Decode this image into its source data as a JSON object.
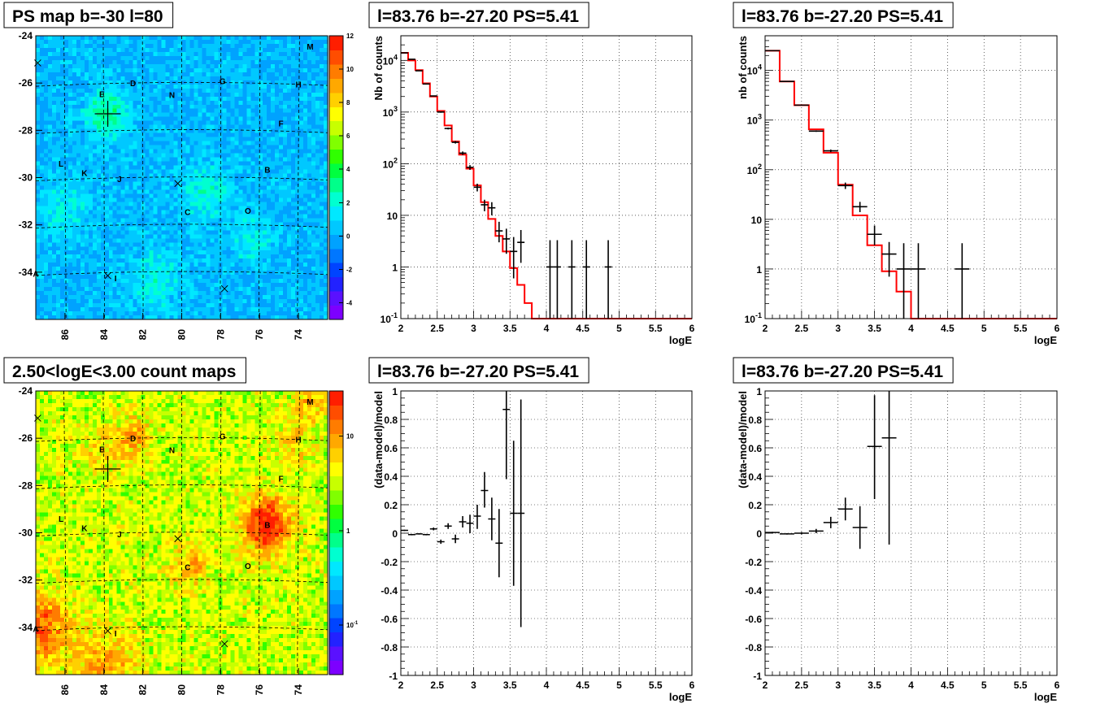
{
  "chart_data": [
    {
      "id": "psmap",
      "type": "heatmap",
      "title": "PS map b=-30 l=80",
      "xlabel": "",
      "ylabel": "",
      "x_ticks": [
        "86",
        "84",
        "82",
        "80",
        "78",
        "76",
        "74"
      ],
      "y_ticks": [
        "-24",
        "-26",
        "-28",
        "-30",
        "-32",
        "-34"
      ],
      "xlim": [
        87.5,
        72.5
      ],
      "ylim": [
        -36,
        -24
      ],
      "z_ticks": [
        "12",
        "10",
        "8",
        "6",
        "4",
        "2",
        "0",
        "-2",
        "-4"
      ],
      "zlim": [
        -5,
        12
      ],
      "cell_mean": 0.3,
      "labels": [
        {
          "text": "M",
          "x": 73.4,
          "y": -24.45
        },
        {
          "text": "E",
          "x": 84.1,
          "y": -26.45
        },
        {
          "text": "D",
          "x": 82.5,
          "y": -26.0
        },
        {
          "text": "G",
          "x": 77.9,
          "y": -25.9
        },
        {
          "text": "H",
          "x": 74.0,
          "y": -26.05
        },
        {
          "text": "N",
          "x": 80.5,
          "y": -26.5
        },
        {
          "text": "F",
          "x": 74.9,
          "y": -27.7
        },
        {
          "text": "L",
          "x": 86.2,
          "y": -29.4
        },
        {
          "text": "K",
          "x": 85.0,
          "y": -29.8
        },
        {
          "text": "J",
          "x": 83.2,
          "y": -30.05
        },
        {
          "text": "B",
          "x": 75.6,
          "y": -29.65
        },
        {
          "text": "C",
          "x": 79.7,
          "y": -31.45
        },
        {
          "text": "O",
          "x": 76.6,
          "y": -31.4
        },
        {
          "text": "A",
          "x": 87.5,
          "y": -34.05
        },
        {
          "text": "I",
          "x": 83.4,
          "y": -34.25
        }
      ],
      "crosses": [
        {
          "x": 87.4,
          "y": -25.15
        },
        {
          "x": 80.2,
          "y": -30.25
        },
        {
          "x": 83.8,
          "y": -34.15
        },
        {
          "x": 77.8,
          "y": -34.7
        }
      ],
      "big_cross": {
        "x": 83.8,
        "y": -27.3
      }
    },
    {
      "id": "spec1",
      "type": "line",
      "title": "l=83.76 b=-27.20 PS=5.41",
      "xlabel": "logE",
      "ylabel": "Nb of counts",
      "log_y": true,
      "xlim": [
        2,
        6
      ],
      "ylim": [
        0.1,
        30000
      ],
      "x_ticks": [
        "2",
        "2.5",
        "3",
        "3.5",
        "4",
        "4.5",
        "5",
        "5.5",
        "6"
      ],
      "y_ticks": [
        "10^-1",
        "1",
        "10",
        "10^2",
        "10^3",
        "10^4"
      ],
      "bin_width": 0.1,
      "model_bins": [
        14000,
        10000,
        6500,
        3600,
        2000,
        1050,
        550,
        270,
        150,
        80,
        38,
        18,
        8.5,
        4,
        2,
        0.95,
        0.45,
        0.2,
        0.1,
        0.1,
        0.1,
        0.1,
        0.1,
        0.1,
        0.1,
        0.1,
        0.1,
        0.1,
        0.1,
        0.1,
        0.1,
        0.1,
        0.1,
        0.1,
        0.1,
        0.1,
        0.1,
        0.1,
        0.1,
        0.1
      ],
      "data_points": [
        {
          "x": 2.05,
          "y": 14000,
          "lo": 13700,
          "hi": 14300
        },
        {
          "x": 2.15,
          "y": 10500,
          "lo": 10300,
          "hi": 10700
        },
        {
          "x": 2.25,
          "y": 6300,
          "lo": 6150,
          "hi": 6450
        },
        {
          "x": 2.35,
          "y": 3500,
          "lo": 3440,
          "hi": 3560
        },
        {
          "x": 2.45,
          "y": 2050,
          "lo": 2000,
          "hi": 2100
        },
        {
          "x": 2.55,
          "y": 1000,
          "lo": 970,
          "hi": 1030
        },
        {
          "x": 2.65,
          "y": 480,
          "lo": 460,
          "hi": 500
        },
        {
          "x": 2.75,
          "y": 260,
          "lo": 245,
          "hi": 275
        },
        {
          "x": 2.85,
          "y": 160,
          "lo": 148,
          "hi": 172
        },
        {
          "x": 2.95,
          "y": 85,
          "lo": 76,
          "hi": 94
        },
        {
          "x": 3.05,
          "y": 35,
          "lo": 29,
          "hi": 41
        },
        {
          "x": 3.15,
          "y": 16,
          "lo": 12,
          "hi": 20
        },
        {
          "x": 3.25,
          "y": 14,
          "lo": 10,
          "hi": 18
        },
        {
          "x": 3.35,
          "y": 5,
          "lo": 3,
          "hi": 7.5
        },
        {
          "x": 3.45,
          "y": 3.5,
          "lo": 1.8,
          "hi": 5.5
        },
        {
          "x": 3.55,
          "y": 2,
          "lo": 0.6,
          "hi": 3.8
        },
        {
          "x": 3.65,
          "y": 3,
          "lo": 1.2,
          "hi": 5.2
        },
        {
          "x": 4.05,
          "y": 1,
          "lo": 0.1,
          "hi": 3.3
        },
        {
          "x": 4.15,
          "y": 1,
          "lo": 0.1,
          "hi": 3.3
        },
        {
          "x": 4.35,
          "y": 1,
          "lo": 0.1,
          "hi": 3.3
        },
        {
          "x": 4.55,
          "y": 1,
          "lo": 0.1,
          "hi": 3.3
        },
        {
          "x": 4.85,
          "y": 1,
          "lo": 0.1,
          "hi": 3.3
        }
      ]
    },
    {
      "id": "spec2",
      "type": "line",
      "title": "l=83.76 b=-27.20 PS=5.41",
      "xlabel": "logE",
      "ylabel": "nb of counts",
      "log_y": true,
      "xlim": [
        2,
        6
      ],
      "ylim": [
        0.1,
        50000
      ],
      "x_ticks": [
        "2",
        "2.5",
        "3",
        "3.5",
        "4",
        "4.5",
        "5",
        "5.5",
        "6"
      ],
      "y_ticks": [
        "10^-1",
        "1",
        "10",
        "10^2",
        "10^3",
        "10^4"
      ],
      "bin_width": 0.2,
      "model_bins": [
        25000,
        6000,
        2000,
        650,
        220,
        50,
        12,
        3,
        0.9,
        0.35,
        0.1,
        0.1,
        0.1,
        0.1,
        0.1,
        0.1,
        0.1,
        0.1,
        0.1,
        0.1
      ],
      "data_points": [
        {
          "x": 2.1,
          "y": 25000,
          "lo": 24700,
          "hi": 25300
        },
        {
          "x": 2.3,
          "y": 6000,
          "lo": 5920,
          "hi": 6080
        },
        {
          "x": 2.5,
          "y": 2000,
          "lo": 1960,
          "hi": 2040
        },
        {
          "x": 2.7,
          "y": 600,
          "lo": 580,
          "hi": 620
        },
        {
          "x": 2.9,
          "y": 240,
          "lo": 225,
          "hi": 255
        },
        {
          "x": 3.1,
          "y": 48,
          "lo": 41,
          "hi": 55
        },
        {
          "x": 3.3,
          "y": 18,
          "lo": 14,
          "hi": 22.5
        },
        {
          "x": 3.5,
          "y": 5,
          "lo": 3,
          "hi": 7.5
        },
        {
          "x": 3.7,
          "y": 2,
          "lo": 0.7,
          "hi": 3.5
        },
        {
          "x": 3.9,
          "y": 1,
          "lo": 0.1,
          "hi": 3.3
        },
        {
          "x": 4.1,
          "y": 1,
          "lo": 0.1,
          "hi": 3.3
        },
        {
          "x": 4.7,
          "y": 1,
          "lo": 0.1,
          "hi": 3.3
        }
      ]
    },
    {
      "id": "countmap",
      "type": "heatmap",
      "title": "2.50<logE<3.00 count maps",
      "xlabel": "",
      "ylabel": "",
      "x_ticks": [
        "86",
        "84",
        "82",
        "80",
        "78",
        "76",
        "74"
      ],
      "y_ticks": [
        "-24",
        "-26",
        "-28",
        "-30",
        "-32",
        "-34"
      ],
      "xlim": [
        87.5,
        72.5
      ],
      "ylim": [
        -36,
        -24
      ],
      "z_ticks": [
        "10",
        "1",
        "10^-1"
      ],
      "zlim": [
        0.03,
        30
      ],
      "cell_mean": 3.5,
      "labels": [
        {
          "text": "M",
          "x": 73.4,
          "y": -24.45
        },
        {
          "text": "E",
          "x": 84.1,
          "y": -26.45
        },
        {
          "text": "D",
          "x": 82.5,
          "y": -26.0
        },
        {
          "text": "G",
          "x": 77.9,
          "y": -25.9
        },
        {
          "text": "H",
          "x": 74.0,
          "y": -26.05
        },
        {
          "text": "N",
          "x": 80.5,
          "y": -26.5
        },
        {
          "text": "F",
          "x": 74.9,
          "y": -27.7
        },
        {
          "text": "L",
          "x": 86.2,
          "y": -29.4
        },
        {
          "text": "K",
          "x": 85.0,
          "y": -29.8
        },
        {
          "text": "J",
          "x": 83.2,
          "y": -30.05
        },
        {
          "text": "B",
          "x": 75.6,
          "y": -29.65
        },
        {
          "text": "C",
          "x": 79.7,
          "y": -31.45
        },
        {
          "text": "O",
          "x": 76.6,
          "y": -31.4
        },
        {
          "text": "A",
          "x": 87.5,
          "y": -34.05
        },
        {
          "text": "I",
          "x": 83.4,
          "y": -34.25
        }
      ],
      "crosses": [
        {
          "x": 87.4,
          "y": -25.15
        },
        {
          "x": 80.2,
          "y": -30.25
        },
        {
          "x": 83.8,
          "y": -34.15
        },
        {
          "x": 77.8,
          "y": -34.7
        }
      ],
      "big_cross": {
        "x": 83.8,
        "y": -27.3
      }
    },
    {
      "id": "res1",
      "type": "scatter",
      "title": "l=83.76 b=-27.20 PS=5.41",
      "xlabel": "logE",
      "ylabel": "(data-model)/model",
      "xlim": [
        2,
        6
      ],
      "ylim": [
        -1,
        1
      ],
      "x_ticks": [
        "2",
        "2.5",
        "3",
        "3.5",
        "4",
        "4.5",
        "5",
        "5.5",
        "6"
      ],
      "y_ticks": [
        "-1",
        "-0.8",
        "-0.6",
        "-0.4",
        "-0.2",
        "0",
        "0.2",
        "0.4",
        "0.6",
        "0.8",
        "1"
      ],
      "data_points": [
        {
          "x": 2.05,
          "y": 0.02,
          "lo": 0.015,
          "hi": 0.025
        },
        {
          "x": 2.15,
          "y": -0.01,
          "lo": -0.015,
          "hi": -0.005
        },
        {
          "x": 2.25,
          "y": -0.005,
          "lo": -0.01,
          "hi": 0.0
        },
        {
          "x": 2.35,
          "y": -0.01,
          "lo": -0.015,
          "hi": -0.005
        },
        {
          "x": 2.45,
          "y": 0.03,
          "lo": 0.02,
          "hi": 0.04
        },
        {
          "x": 2.55,
          "y": -0.06,
          "lo": -0.075,
          "hi": -0.045
        },
        {
          "x": 2.65,
          "y": 0.05,
          "lo": 0.03,
          "hi": 0.07
        },
        {
          "x": 2.75,
          "y": -0.04,
          "lo": -0.07,
          "hi": -0.01
        },
        {
          "x": 2.85,
          "y": 0.08,
          "lo": 0.04,
          "hi": 0.12
        },
        {
          "x": 2.95,
          "y": 0.07,
          "lo": 0.0,
          "hi": 0.13
        },
        {
          "x": 3.05,
          "y": 0.12,
          "lo": 0.03,
          "hi": 0.2
        },
        {
          "x": 3.15,
          "y": 0.3,
          "lo": 0.18,
          "hi": 0.43
        },
        {
          "x": 3.25,
          "y": 0.1,
          "lo": -0.05,
          "hi": 0.25
        },
        {
          "x": 3.35,
          "y": -0.07,
          "lo": -0.31,
          "hi": 0.17
        },
        {
          "x": 3.45,
          "y": 0.87,
          "lo": 0.38,
          "hi": 1.0
        },
        {
          "x": 3.55,
          "y": 0.14,
          "lo": -0.37,
          "hi": 0.65
        },
        {
          "x": 3.65,
          "y": 0.14,
          "lo": -0.66,
          "hi": 0.94
        }
      ]
    },
    {
      "id": "res2",
      "type": "scatter",
      "title": "l=83.76 b=-27.20 PS=5.41",
      "xlabel": "logE",
      "ylabel": "(data-model)/model",
      "xlim": [
        2,
        6
      ],
      "ylim": [
        -1,
        1
      ],
      "x_ticks": [
        "2",
        "2.5",
        "3",
        "3.5",
        "4",
        "4.5",
        "5",
        "5.5",
        "6"
      ],
      "y_ticks": [
        "-1",
        "-0.8",
        "-0.6",
        "-0.4",
        "-0.2",
        "0",
        "0.2",
        "0.4",
        "0.6",
        "0.8",
        "1"
      ],
      "data_points": [
        {
          "x": 2.1,
          "y": 0.005,
          "lo": 0.0,
          "hi": 0.01
        },
        {
          "x": 2.3,
          "y": -0.005,
          "lo": -0.01,
          "hi": 0.0
        },
        {
          "x": 2.5,
          "y": 0.0,
          "lo": -0.008,
          "hi": 0.008
        },
        {
          "x": 2.7,
          "y": 0.015,
          "lo": 0.0,
          "hi": 0.03
        },
        {
          "x": 2.9,
          "y": 0.075,
          "lo": 0.035,
          "hi": 0.115
        },
        {
          "x": 3.1,
          "y": 0.17,
          "lo": 0.09,
          "hi": 0.25
        },
        {
          "x": 3.3,
          "y": 0.04,
          "lo": -0.11,
          "hi": 0.19
        },
        {
          "x": 3.5,
          "y": 0.61,
          "lo": 0.24,
          "hi": 0.97
        },
        {
          "x": 3.7,
          "y": 0.67,
          "lo": -0.08,
          "hi": 1.0
        }
      ]
    }
  ]
}
